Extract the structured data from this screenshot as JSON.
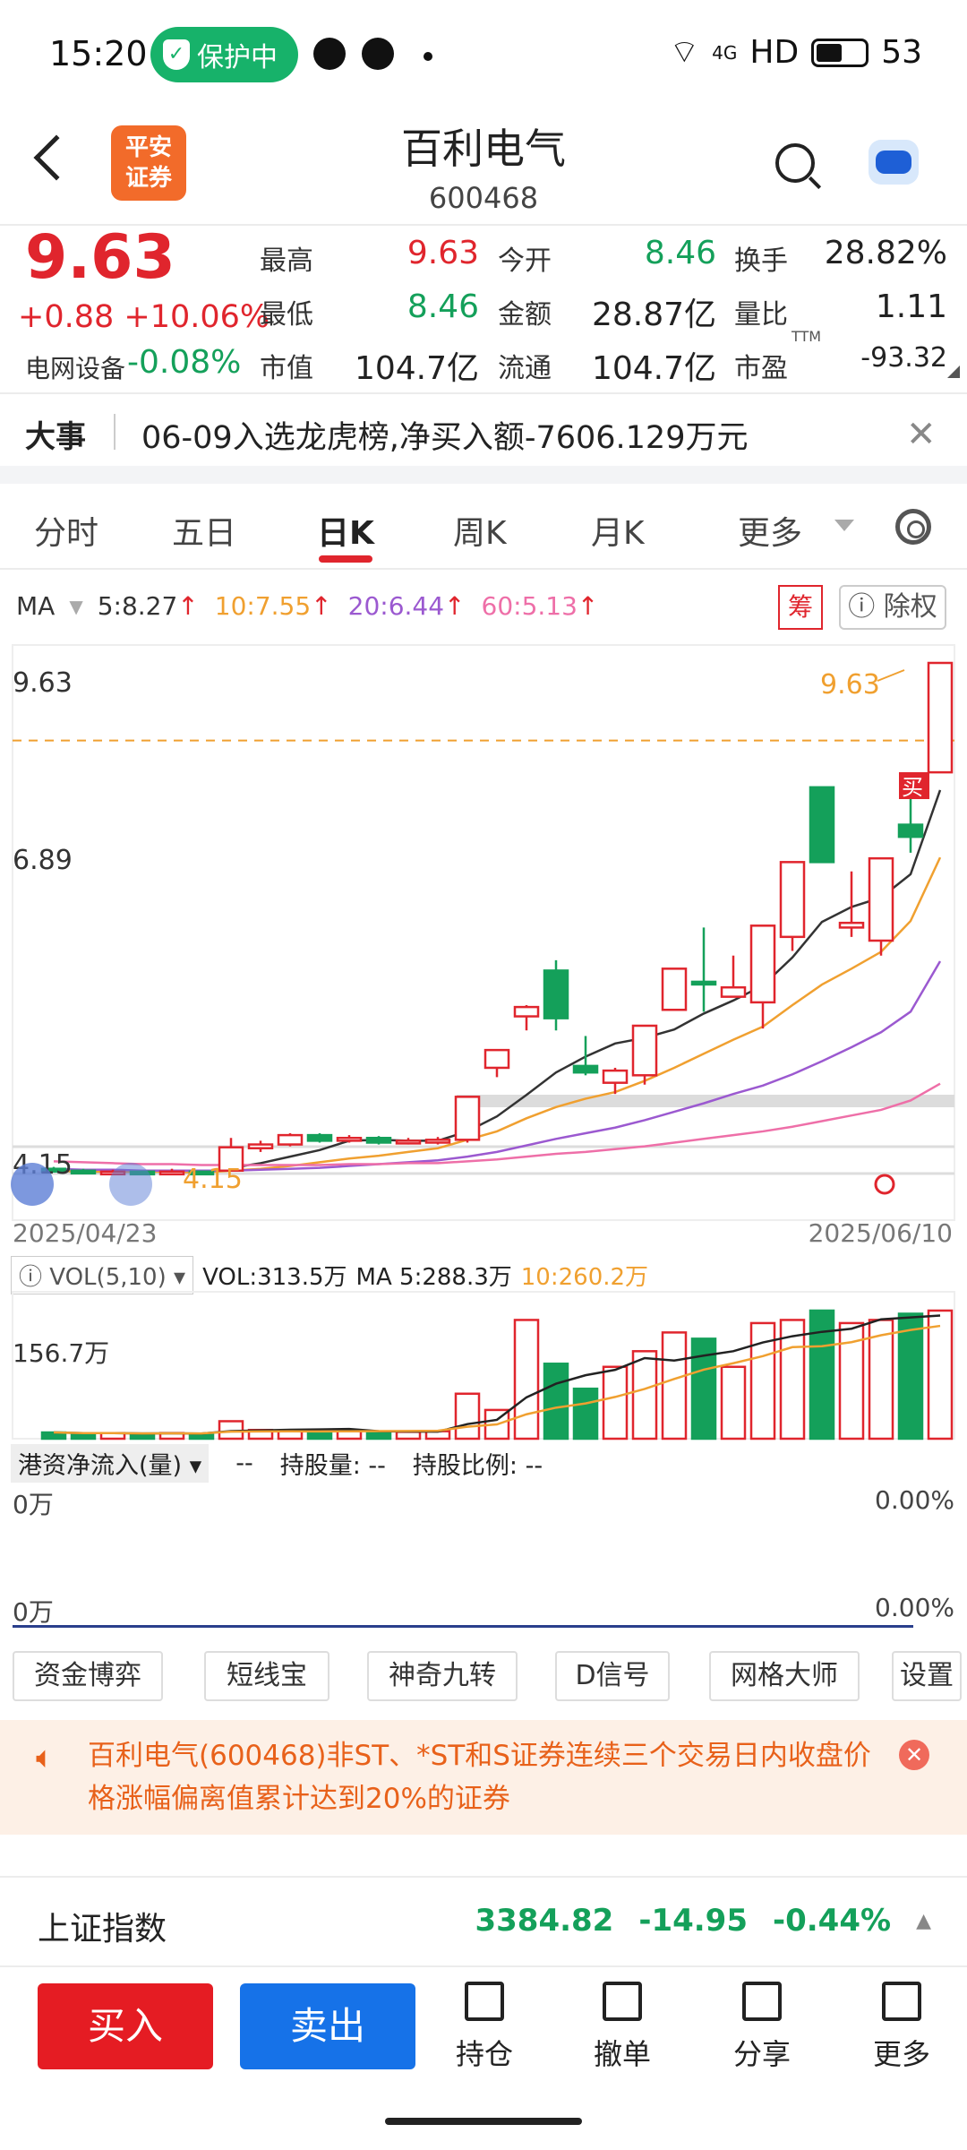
{
  "status_bar": {
    "time": "15:20",
    "protect_label": "保护中",
    "network": "4G",
    "hd": "HD",
    "battery": "53",
    "icons": [
      "shield-icon",
      "message-icon",
      "chat-icon",
      "wifi-icon",
      "signal-icon",
      "battery-icon"
    ]
  },
  "header": {
    "logo_line1": "平安",
    "logo_line2": "证券",
    "title": "百利电气",
    "code": "600468"
  },
  "quote": {
    "price": "9.63",
    "change": "+0.88 +10.06%",
    "sector_name": "电网设备",
    "sector_change": "-0.08%",
    "fields": [
      {
        "label": "最高",
        "value": "9.63",
        "color": "red"
      },
      {
        "label": "今开",
        "value": "8.46",
        "color": "green"
      },
      {
        "label": "换手",
        "value": "28.82%",
        "color": "dark"
      },
      {
        "label": "最低",
        "value": "8.46",
        "color": "green"
      },
      {
        "label": "金额",
        "value": "28.87亿",
        "color": "dark"
      },
      {
        "label": "量比",
        "value": "1.11",
        "color": "dark"
      },
      {
        "label": "市值",
        "value": "104.7亿",
        "color": "dark"
      },
      {
        "label": "流通",
        "value": "104.7亿",
        "color": "dark"
      },
      {
        "label": "市盈",
        "value": "-93.32",
        "color": "dark"
      }
    ],
    "ttm": "TTM"
  },
  "event": {
    "label": "大事",
    "text": "06-09入选龙虎榜,净买入额-7606.129万元",
    "close": "✕"
  },
  "tabs": {
    "items": [
      "分时",
      "五日",
      "日K",
      "周K",
      "月K",
      "更多"
    ],
    "active": "日K"
  },
  "ma_legend": {
    "label": "MA",
    "items": [
      {
        "text": "5:8.27",
        "color": "#333333"
      },
      {
        "text": "10:7.55",
        "color": "#f0a030"
      },
      {
        "text": "20:6.44",
        "color": "#9b59d0"
      },
      {
        "text": "60:5.13",
        "color": "#ee6fa8"
      }
    ],
    "arrow": "↑",
    "chou": "筹",
    "fuquan": "除权"
  },
  "chart_data": {
    "type": "candlestick",
    "y_labels": [
      "9.63",
      "6.89",
      "4.15"
    ],
    "ylim": [
      4.15,
      9.63
    ],
    "price_tag_high": "9.63",
    "price_tag_low": "4.15",
    "date_start": "2025/04/23",
    "date_end": "2025/06/10",
    "buy_marker": "买",
    "candles": [
      {
        "o": 4.22,
        "c": 4.2,
        "h": 4.24,
        "l": 4.18
      },
      {
        "o": 4.2,
        "c": 4.18,
        "h": 4.22,
        "l": 4.16
      },
      {
        "o": 4.18,
        "c": 4.19,
        "h": 4.21,
        "l": 4.16
      },
      {
        "o": 4.19,
        "c": 4.17,
        "h": 4.2,
        "l": 4.15
      },
      {
        "o": 4.17,
        "c": 4.19,
        "h": 4.22,
        "l": 4.16
      },
      {
        "o": 4.19,
        "c": 4.18,
        "h": 4.2,
        "l": 4.16
      },
      {
        "o": 4.2,
        "c": 4.45,
        "h": 4.55,
        "l": 4.2
      },
      {
        "o": 4.44,
        "c": 4.48,
        "h": 4.52,
        "l": 4.4
      },
      {
        "o": 4.48,
        "c": 4.58,
        "h": 4.6,
        "l": 4.46
      },
      {
        "o": 4.58,
        "c": 4.52,
        "h": 4.6,
        "l": 4.5
      },
      {
        "o": 4.52,
        "c": 4.55,
        "h": 4.58,
        "l": 4.5
      },
      {
        "o": 4.55,
        "c": 4.5,
        "h": 4.57,
        "l": 4.48
      },
      {
        "o": 4.5,
        "c": 4.52,
        "h": 4.55,
        "l": 4.48
      },
      {
        "o": 4.5,
        "c": 4.53,
        "h": 4.56,
        "l": 4.48
      },
      {
        "o": 4.53,
        "c": 4.99,
        "h": 4.99,
        "l": 4.5
      },
      {
        "o": 5.3,
        "c": 5.49,
        "h": 5.49,
        "l": 5.2
      },
      {
        "o": 5.85,
        "c": 5.95,
        "h": 5.97,
        "l": 5.7
      },
      {
        "o": 6.34,
        "c": 5.83,
        "h": 6.45,
        "l": 5.7
      },
      {
        "o": 5.32,
        "c": 5.25,
        "h": 5.64,
        "l": 5.22
      },
      {
        "o": 5.14,
        "c": 5.27,
        "h": 5.3,
        "l": 5.02
      },
      {
        "o": 5.22,
        "c": 5.75,
        "h": 5.75,
        "l": 5.12
      },
      {
        "o": 5.92,
        "c": 6.36,
        "h": 6.36,
        "l": 5.92
      },
      {
        "o": 6.22,
        "c": 6.2,
        "h": 6.8,
        "l": 5.9
      },
      {
        "o": 6.06,
        "c": 6.16,
        "h": 6.5,
        "l": 6.06
      },
      {
        "o": 6.0,
        "c": 6.82,
        "h": 6.82,
        "l": 5.72
      },
      {
        "o": 6.7,
        "c": 7.5,
        "h": 7.5,
        "l": 6.55
      },
      {
        "o": 8.3,
        "c": 7.5,
        "h": 8.3,
        "l": 7.5
      },
      {
        "o": 6.8,
        "c": 6.85,
        "h": 7.4,
        "l": 6.7
      },
      {
        "o": 6.66,
        "c": 7.54,
        "h": 7.54,
        "l": 6.5
      },
      {
        "o": 7.9,
        "c": 7.77,
        "h": 8.39,
        "l": 7.6
      },
      {
        "o": 8.46,
        "c": 9.63,
        "h": 9.63,
        "l": 8.46
      }
    ],
    "ma": {
      "ma5": [
        4.2,
        4.19,
        4.19,
        4.19,
        4.19,
        4.18,
        4.23,
        4.28,
        4.35,
        4.42,
        4.52,
        4.53,
        4.52,
        4.52,
        4.62,
        4.78,
        5.01,
        5.25,
        5.42,
        5.56,
        5.62,
        5.71,
        5.88,
        6.02,
        6.18,
        6.48,
        6.86,
        7.02,
        7.12,
        7.37,
        8.27
      ],
      "ma10": [
        4.2,
        4.19,
        4.19,
        4.19,
        4.19,
        4.18,
        4.2,
        4.22,
        4.25,
        4.29,
        4.33,
        4.36,
        4.4,
        4.44,
        4.53,
        4.62,
        4.76,
        4.88,
        4.97,
        5.04,
        5.16,
        5.3,
        5.45,
        5.6,
        5.74,
        5.97,
        6.19,
        6.36,
        6.54,
        6.87,
        7.55
      ],
      "ma20": [
        4.22,
        4.21,
        4.21,
        4.2,
        4.2,
        4.2,
        4.2,
        4.21,
        4.22,
        4.23,
        4.25,
        4.27,
        4.29,
        4.31,
        4.35,
        4.4,
        4.47,
        4.54,
        4.6,
        4.66,
        4.74,
        4.83,
        4.92,
        5.02,
        5.11,
        5.23,
        5.37,
        5.52,
        5.68,
        5.9,
        6.44
      ],
      "ma60": [
        4.3,
        4.29,
        4.28,
        4.27,
        4.27,
        4.26,
        4.26,
        4.26,
        4.26,
        4.26,
        4.27,
        4.27,
        4.28,
        4.28,
        4.3,
        4.32,
        4.35,
        4.38,
        4.4,
        4.43,
        4.46,
        4.5,
        4.54,
        4.58,
        4.62,
        4.67,
        4.73,
        4.79,
        4.85,
        4.95,
        5.13
      ]
    }
  },
  "volume": {
    "selector": "VOL(5,10)",
    "vol": "VOL:313.5万",
    "ma5": "MA 5:288.3万",
    "ma10": "10:260.2万",
    "y_label": "156.7万",
    "bars": [
      10,
      8,
      9,
      7,
      9,
      8,
      28,
      14,
      13,
      11,
      12,
      10,
      11,
      12,
      72,
      46,
      190,
      120,
      80,
      115,
      140,
      170,
      160,
      115,
      185,
      190,
      205,
      185,
      190,
      200,
      205
    ]
  },
  "hk": {
    "selector": "港资净流入(量)",
    "dash": "--",
    "hold_label": "持股量:",
    "hold_value": "--",
    "ratio_label": "持股比例:",
    "ratio_value": "--",
    "y_top": "0万",
    "y_bottom": "0万",
    "pct_top": "0.00%",
    "pct_bottom": "0.00%"
  },
  "tools": [
    "资金博弈",
    "短线宝",
    "神奇九转",
    "D信号",
    "网格大师",
    "设置"
  ],
  "notice": {
    "text": "百利电气(600468)非ST、*ST和S证券连续三个交易日内收盘价格涨幅偏离值累计达到20%的证券"
  },
  "index_bar": {
    "name": "上证指数",
    "value": "3384.82",
    "change": "-14.95",
    "pct": "-0.44%"
  },
  "bottom_nav": {
    "buy": "买入",
    "sell": "卖出",
    "items": [
      "持仓",
      "撤单",
      "分享",
      "更多"
    ]
  }
}
